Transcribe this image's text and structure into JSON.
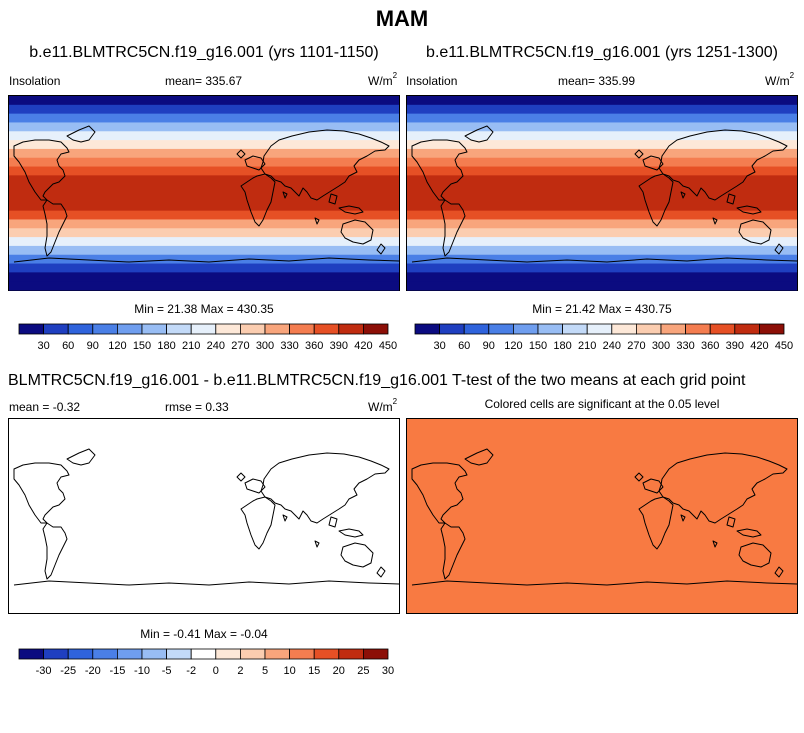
{
  "figure": {
    "title": "MAM"
  },
  "chart_data": [
    {
      "type": "heatmap",
      "title": "b.e11.BLMTRC5CN.f19_g16.001 (yrs 1101-1150)",
      "variable": "Insolation",
      "mean_label": "mean= 335.67",
      "units_base": "W/m",
      "units_exp": "2",
      "minmax_label": "Min =  21.38 Max = 430.35",
      "min": 21.38,
      "max": 430.35,
      "mean": 335.67,
      "colorbar": {
        "labels": [
          "30",
          "60",
          "90",
          "120",
          "150",
          "180",
          "210",
          "240",
          "270",
          "300",
          "330",
          "360",
          "390",
          "420",
          "450"
        ]
      }
    },
    {
      "type": "heatmap",
      "title": "b.e11.BLMTRC5CN.f19_g16.001 (yrs 1251-1300)",
      "variable": "Insolation",
      "mean_label": "mean= 335.99",
      "units_base": "W/m",
      "units_exp": "2",
      "minmax_label": "Min =  21.42 Max = 430.75",
      "min": 21.42,
      "max": 430.75,
      "mean": 335.99,
      "colorbar": {
        "labels": [
          "30",
          "60",
          "90",
          "120",
          "150",
          "180",
          "210",
          "240",
          "270",
          "300",
          "330",
          "360",
          "390",
          "420",
          "450"
        ]
      }
    },
    {
      "type": "heatmap",
      "title": "BLMTRC5CN.f19_g16.001 - b.e11.BLMTRC5CN.f19_g16.001",
      "mean_label": "mean =  -0.32",
      "rmse_label": "rmse =  0.33",
      "units_base": "W/m",
      "units_exp": "2",
      "minmax_label": "Min =  -0.41 Max =  -0.04",
      "min": -0.41,
      "max": -0.04,
      "mean": -0.32,
      "rmse": 0.33,
      "colorbar": {
        "labels": [
          "-30",
          "-25",
          "-20",
          "-15",
          "-10",
          "-5",
          "-2",
          "0",
          "2",
          "5",
          "10",
          "15",
          "20",
          "25",
          "30"
        ]
      }
    },
    {
      "type": "heatmap",
      "title": "T-test of the two means at each grid point",
      "subtitle": "Colored cells are significant at the 0.05 level"
    }
  ],
  "colors": {
    "insolation_palette": [
      "#0b0b80",
      "#1f3fc0",
      "#2f63dc",
      "#4a7fe6",
      "#6f9eef",
      "#98bdf4",
      "#c3daf8",
      "#e6f0fb",
      "#fde8d8",
      "#fbcdb0",
      "#f8a57c",
      "#f47d50",
      "#e65025",
      "#c02c10",
      "#8c0f07"
    ],
    "diff_palette": [
      "#0b0b80",
      "#1f3fc0",
      "#2f63dc",
      "#4a7fe6",
      "#6f9eef",
      "#98bdf4",
      "#c3daf8",
      "#ffffff",
      "#fde8d8",
      "#fbcdb0",
      "#f8a57c",
      "#f47d50",
      "#e65025",
      "#c02c10",
      "#8c0f07"
    ],
    "significance_fill": "#f87a42"
  }
}
